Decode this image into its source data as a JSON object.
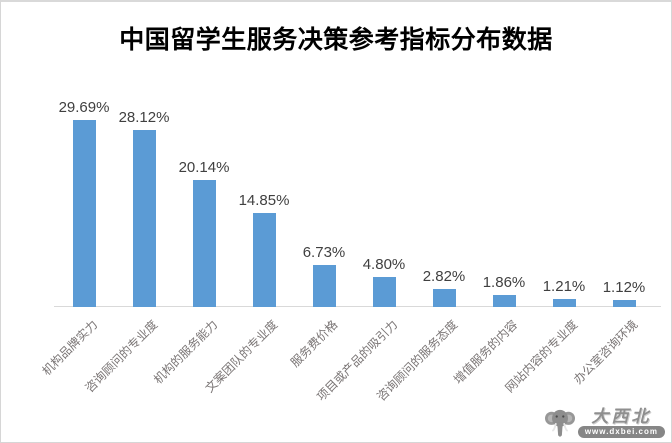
{
  "page": {
    "title": "中国留学生服务决策参考指标分布数据"
  },
  "chart_data": {
    "type": "bar",
    "title": "中国留学生服务决策参考指标分布数据",
    "categories": [
      "机构品牌实力",
      "咨询顾问的专业度",
      "机构的服务能力",
      "文案团队的专业度",
      "服务费价格",
      "项目或产品的吸引力",
      "咨询顾问的服务态度",
      "增值服务的内容",
      "网站内容的专业度",
      "办公室咨询环境"
    ],
    "values": [
      29.69,
      28.12,
      20.14,
      14.85,
      6.73,
      4.8,
      2.82,
      1.86,
      1.21,
      1.12
    ],
    "data_labels": [
      "29.69%",
      "28.12%",
      "20.14%",
      "14.85%",
      "6.73%",
      "4.80%",
      "2.82%",
      "1.86%",
      "1.21%",
      "1.12%"
    ],
    "xlabel": "",
    "ylabel": "",
    "ylim": [
      0,
      32
    ],
    "grid": false,
    "legend": "none",
    "bar_color": "#5b9bd5",
    "axis_line_color": "#d9d9d9",
    "value_label_color": "#404040",
    "category_label_color": "#7a7575",
    "category_label_rotation_deg": -45
  },
  "watermark": {
    "logo_icon": "elephant-logo-icon",
    "site_name": "大西北",
    "site_url": "www.dxbei.com"
  }
}
